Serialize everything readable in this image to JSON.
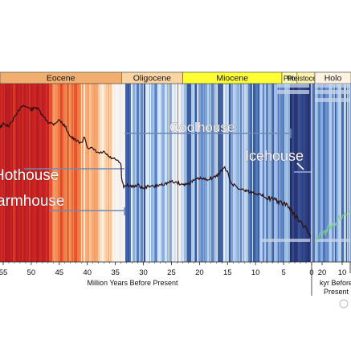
{
  "chart_data": {
    "type": "line",
    "title": "",
    "xlabel": "Million Years Before Present",
    "xlabel2": "kyr Before Present",
    "left_xlim": [
      56,
      0
    ],
    "left_ticks": [
      55,
      50,
      45,
      40,
      35,
      30,
      25,
      20,
      15,
      10,
      5,
      0
    ],
    "right_ticks": [
      20,
      10
    ],
    "epochs": [
      {
        "name": "Eocene",
        "start": 56,
        "end": 33.9,
        "color": "#f2ae6e"
      },
      {
        "name": "Oligocene",
        "start": 33.9,
        "end": 23,
        "color": "#fbd4a4"
      },
      {
        "name": "Miocene",
        "start": 23,
        "end": 5.3,
        "color": "#ffff33"
      },
      {
        "name": "Plio",
        "start": 5.3,
        "end": 2.6,
        "color": "#ffffb0"
      },
      {
        "name": "Pleistocene",
        "start": 2.6,
        "end": 0.01,
        "color": "#fff2ae"
      },
      {
        "name": "Holo",
        "start": 0.01,
        "end": 0,
        "color": "#fef2e0"
      }
    ],
    "climate_states": [
      {
        "name": "Hothouse"
      },
      {
        "name": "armhouse"
      },
      {
        "name": "Coolhouse"
      },
      {
        "name": "Icehouse"
      }
    ],
    "series": [
      {
        "x": [
          56,
          55,
          54,
          53,
          52.5,
          52,
          51.5,
          51,
          50,
          49,
          48,
          47,
          46,
          45,
          44,
          43,
          42,
          41,
          40.5,
          40,
          39,
          38,
          37,
          36,
          35,
          34.5,
          34,
          33.9,
          33.5,
          33,
          32,
          31,
          30,
          29,
          28,
          27,
          26,
          25,
          24,
          23,
          22,
          21,
          20,
          19,
          18,
          17,
          16,
          15.5,
          15,
          14.5,
          14,
          13.5,
          13,
          12,
          11,
          10,
          9,
          8,
          7,
          6,
          5,
          4.5,
          4,
          3.5,
          3,
          2.5,
          2,
          1.5,
          1,
          0.5,
          0
        ],
        "y": [
          0.34,
          0.28,
          0.3,
          0.22,
          0.18,
          0.12,
          0.1,
          0.11,
          0.14,
          0.12,
          0.2,
          0.26,
          0.28,
          0.24,
          0.3,
          0.4,
          0.44,
          0.46,
          0.4,
          0.5,
          0.52,
          0.56,
          0.55,
          0.6,
          0.62,
          0.64,
          0.66,
          0.8,
          0.88,
          0.86,
          0.88,
          0.86,
          0.9,
          0.87,
          0.88,
          0.86,
          0.85,
          0.83,
          0.84,
          0.86,
          0.85,
          0.82,
          0.8,
          0.81,
          0.8,
          0.78,
          0.72,
          0.7,
          0.74,
          0.83,
          0.86,
          0.87,
          0.9,
          0.91,
          0.93,
          0.94,
          0.96,
          0.98,
          1.0,
          1.02,
          1.05,
          1.04,
          1.08,
          1.12,
          1.16,
          1.18,
          1.22,
          1.26,
          1.28,
          1.32,
          1.38
        ]
      }
    ]
  }
}
